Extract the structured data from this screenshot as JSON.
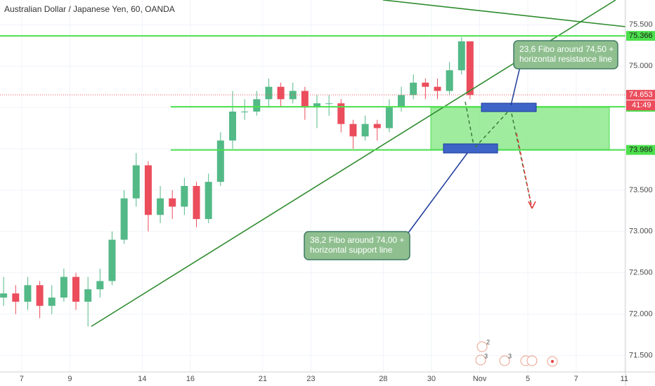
{
  "chart_data": {
    "type": "candlestick",
    "title": "Australian Dollar / Japanese Yen, 60, OANDA",
    "x": [
      -0.75,
      -0.25,
      0.25,
      0.75,
      1.25,
      1.75,
      2.25,
      2.75,
      3.25,
      3.75,
      4.25,
      4.75,
      5.25,
      5.75,
      6.25,
      6.75,
      7.25,
      7.75,
      8.25,
      8.75,
      9.25,
      9.75,
      10.25,
      10.75,
      11.25,
      11.75,
      12.25,
      12.75,
      13.25,
      13.75,
      14.25,
      14.75,
      15.25,
      15.75,
      16.25,
      16.75,
      17.25,
      17.75,
      18.25,
      18.6
    ],
    "open": [
      72.2,
      72.25,
      72.15,
      72.35,
      72.1,
      72.2,
      72.45,
      72.15,
      72.3,
      72.4,
      72.9,
      73.4,
      73.8,
      73.2,
      73.4,
      73.3,
      73.55,
      73.15,
      73.6,
      74.1,
      74.45,
      74.45,
      74.6,
      74.75,
      74.6,
      74.7,
      74.5,
      74.55,
      74.55,
      74.3,
      74.15,
      74.3,
      74.25,
      74.5,
      74.65,
      74.8,
      74.75,
      74.7,
      74.95,
      75.3
    ],
    "high": [
      72.45,
      72.35,
      72.45,
      72.4,
      72.35,
      72.55,
      72.5,
      72.45,
      72.55,
      73.0,
      73.5,
      73.95,
      73.85,
      73.55,
      73.5,
      73.65,
      73.6,
      73.7,
      74.2,
      74.7,
      74.6,
      74.7,
      74.85,
      74.8,
      74.8,
      74.75,
      74.65,
      74.65,
      74.6,
      74.35,
      74.4,
      74.35,
      74.6,
      74.75,
      74.9,
      74.85,
      74.85,
      75.05,
      75.35,
      75.3
    ],
    "low": [
      72.1,
      72.0,
      72.05,
      71.95,
      72.0,
      72.15,
      72.05,
      71.85,
      72.2,
      72.35,
      72.85,
      73.3,
      73.0,
      73.1,
      73.15,
      73.2,
      73.05,
      73.1,
      73.55,
      74.0,
      74.35,
      74.4,
      74.5,
      74.5,
      74.55,
      74.35,
      74.25,
      74.4,
      74.2,
      74.0,
      74.1,
      74.1,
      74.2,
      74.45,
      74.6,
      74.6,
      74.6,
      74.65,
      74.9,
      74.6
    ],
    "close": [
      72.25,
      72.15,
      72.35,
      72.1,
      72.2,
      72.45,
      72.15,
      72.3,
      72.4,
      72.9,
      73.4,
      73.8,
      73.2,
      73.4,
      73.3,
      73.55,
      73.15,
      73.6,
      74.1,
      74.45,
      74.45,
      74.6,
      74.75,
      74.6,
      74.7,
      74.5,
      74.55,
      74.55,
      74.3,
      74.15,
      74.3,
      74.25,
      74.5,
      74.65,
      74.8,
      74.75,
      74.7,
      74.95,
      75.3,
      74.65
    ],
    "up_color": "#53b987",
    "down_color": "#eb4d5c",
    "xlim": [
      -0.9,
      25.05
    ],
    "xticks": [
      {
        "value": 0,
        "label": "7"
      },
      {
        "value": 2,
        "label": "9"
      },
      {
        "value": 5,
        "label": "14"
      },
      {
        "value": 7,
        "label": "16"
      },
      {
        "value": 10,
        "label": "21"
      },
      {
        "value": 12,
        "label": "23"
      },
      {
        "value": 15,
        "label": "28"
      },
      {
        "value": 17,
        "label": "30"
      },
      {
        "value": 19,
        "label": "Nov"
      },
      {
        "value": 21,
        "label": "5"
      },
      {
        "value": 23,
        "label": "7"
      },
      {
        "value": 25,
        "label": "11"
      }
    ],
    "ylim": [
      71.3,
      75.8
    ],
    "yticks": [
      {
        "value": 71.5,
        "label": "71.500"
      },
      {
        "value": 72,
        "label": "72.000"
      },
      {
        "value": 72.5,
        "label": "72.500"
      },
      {
        "value": 73,
        "label": "73.000"
      },
      {
        "value": 73.5,
        "label": "73.500"
      },
      {
        "value": 74,
        "label": "74.000"
      },
      {
        "value": 74.5,
        "label": "74.500"
      },
      {
        "value": 75,
        "label": "75.000"
      },
      {
        "value": 75.5,
        "label": "75.500"
      }
    ],
    "levels": [
      75.366,
      74.508,
      73.986
    ],
    "level_color": "#4ce04c",
    "last_price": 74.653,
    "countdown": "41:49",
    "annotations": [
      {
        "line1": "23,6 Fibo around 74,50 +",
        "line2": "horizontal resistance line"
      },
      {
        "line1": "38,2 Fibo around 74,00 +",
        "line2": "horizontal support line"
      }
    ],
    "events": [
      "2",
      "3",
      "3"
    ]
  }
}
